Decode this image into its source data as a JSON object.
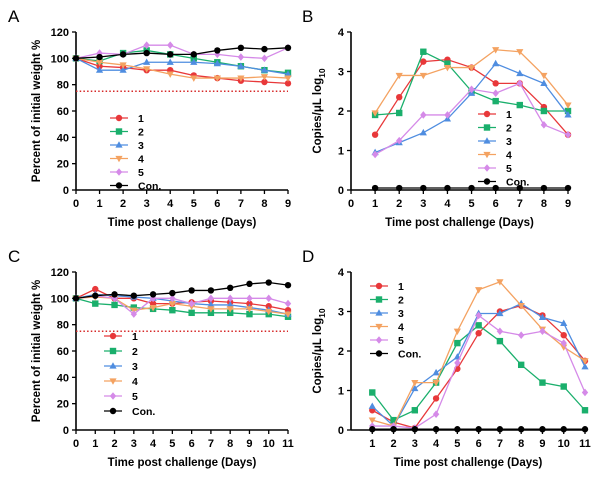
{
  "colors": {
    "1": "#e8383a",
    "2": "#1aaf6c",
    "3": "#4f8de0",
    "4": "#f4a261",
    "5": "#d58ae8",
    "Con.": "#000000",
    "threshold": "#d62828"
  },
  "chart_data": [
    {
      "panel": "A",
      "type": "line",
      "xlabel": "Time post challenge (Days)",
      "ylabel": "Percent of initial weight %",
      "xlim": [
        0,
        9
      ],
      "ylim": [
        0,
        120
      ],
      "xticks": [
        "0",
        "1",
        "2",
        "3",
        "4",
        "5",
        "6",
        "7",
        "8",
        "9"
      ],
      "yticks": [
        "0",
        "20",
        "40",
        "60",
        "80",
        "100",
        "120"
      ],
      "x": [
        0,
        1,
        2,
        3,
        4,
        5,
        6,
        7,
        8,
        9
      ],
      "threshold_line": 75,
      "legend_placement": "bottom-left",
      "series": [
        {
          "name": "1",
          "marker": "circle",
          "values": [
            100,
            94,
            93,
            91,
            91,
            87,
            85,
            83,
            82,
            81
          ]
        },
        {
          "name": "2",
          "marker": "square",
          "values": [
            100,
            98,
            104,
            106,
            103,
            100,
            97,
            94,
            91,
            89
          ]
        },
        {
          "name": "3",
          "marker": "triangle-up",
          "values": [
            100,
            91,
            91,
            97,
            97,
            97,
            96,
            94,
            91,
            88
          ]
        },
        {
          "name": "4",
          "marker": "triangle-down",
          "values": [
            100,
            97,
            95,
            92,
            88,
            85,
            85,
            85,
            86,
            85
          ]
        },
        {
          "name": "5",
          "marker": "diamond",
          "values": [
            100,
            104,
            103,
            110,
            110,
            103,
            103,
            101,
            100,
            108
          ]
        },
        {
          "name": "Con.",
          "marker": "circle",
          "values": [
            100,
            101,
            103,
            104,
            103,
            103,
            106,
            108,
            107,
            108
          ]
        }
      ]
    },
    {
      "panel": "B",
      "type": "line",
      "xlabel": "Time post challenge  (Days)",
      "ylabel": "Copies/μL log",
      "ylabel_sub": "10",
      "xlim": [
        0,
        9
      ],
      "ylim": [
        0,
        4
      ],
      "xticks": [
        "0",
        "1",
        "2",
        "3",
        "4",
        "5",
        "6",
        "7",
        "8",
        "9"
      ],
      "yticks": [
        "0",
        "1",
        "2",
        "3",
        "4"
      ],
      "x": [
        1,
        2,
        3,
        4,
        5,
        6,
        7,
        8,
        9
      ],
      "legend_placement": "bottom-right",
      "series": [
        {
          "name": "1",
          "marker": "circle",
          "values": [
            1.4,
            2.35,
            3.25,
            3.3,
            3.1,
            2.7,
            2.7,
            2.1,
            1.4
          ]
        },
        {
          "name": "2",
          "marker": "square",
          "values": [
            1.9,
            1.95,
            3.5,
            3.2,
            2.5,
            2.25,
            2.15,
            2.0,
            2.0
          ]
        },
        {
          "name": "3",
          "marker": "triangle-up",
          "values": [
            0.95,
            1.2,
            1.45,
            1.8,
            2.45,
            3.2,
            2.95,
            2.7,
            1.9
          ]
        },
        {
          "name": "4",
          "marker": "triangle-down",
          "values": [
            1.95,
            2.9,
            2.9,
            3.1,
            3.1,
            3.55,
            3.5,
            2.9,
            2.15
          ]
        },
        {
          "name": "5",
          "marker": "diamond",
          "values": [
            0.9,
            1.25,
            1.9,
            1.9,
            2.55,
            2.45,
            2.7,
            1.65,
            1.4
          ]
        },
        {
          "name": "Con.",
          "marker": "circle",
          "values": [
            0.05,
            0.05,
            0.05,
            0.05,
            0.05,
            0.05,
            0.05,
            0.05,
            0.05
          ]
        }
      ]
    },
    {
      "panel": "C",
      "type": "line",
      "xlabel": "Time post challenge (Days)",
      "ylabel": "Percent of initial weight %",
      "xlim": [
        0,
        11
      ],
      "ylim": [
        0,
        120
      ],
      "xticks": [
        "0",
        "1",
        "2",
        "3",
        "4",
        "5",
        "6",
        "7",
        "8",
        "9",
        "10",
        "11"
      ],
      "yticks": [
        "0",
        "20",
        "40",
        "60",
        "80",
        "100",
        "120"
      ],
      "x": [
        0,
        1,
        2,
        3,
        4,
        5,
        6,
        7,
        8,
        9,
        10,
        11
      ],
      "threshold_line": 75,
      "legend_placement": "bottom-left",
      "series": [
        {
          "name": "1",
          "marker": "circle",
          "values": [
            100,
            107,
            100,
            100,
            96,
            96,
            97,
            98,
            97,
            96,
            94,
            91
          ]
        },
        {
          "name": "2",
          "marker": "square",
          "values": [
            100,
            96,
            95,
            93,
            92,
            91,
            89,
            89,
            89,
            88,
            88,
            86
          ]
        },
        {
          "name": "3",
          "marker": "triangle-up",
          "values": [
            100,
            103,
            102,
            101,
            100,
            98,
            96,
            95,
            95,
            93,
            91,
            88
          ]
        },
        {
          "name": "4",
          "marker": "triangle-down",
          "values": [
            100,
            101,
            100,
            91,
            93,
            96,
            94,
            92,
            92,
            92,
            90,
            88
          ]
        },
        {
          "name": "5",
          "marker": "diamond",
          "values": [
            100,
            102,
            100,
            88,
            100,
            100,
            96,
            100,
            100,
            100,
            100,
            96
          ]
        },
        {
          "name": "Con.",
          "marker": "circle",
          "values": [
            100,
            102,
            103,
            102,
            103,
            104,
            106,
            106,
            108,
            111,
            112,
            110
          ]
        }
      ]
    },
    {
      "panel": "D",
      "type": "line",
      "xlabel": "Time post challenge  (Days)",
      "ylabel": "Copies/μL log",
      "ylabel_sub": "10",
      "xlim": [
        0,
        11
      ],
      "ylim": [
        0,
        4
      ],
      "xticks": [
        "1",
        "2",
        "3",
        "4",
        "5",
        "6",
        "7",
        "8",
        "9",
        "10",
        "11"
      ],
      "yticks": [
        "0",
        "1",
        "2",
        "3",
        "4"
      ],
      "x": [
        1,
        2,
        3,
        4,
        5,
        6,
        7,
        8,
        9,
        10,
        11
      ],
      "legend_placement": "top-left",
      "series": [
        {
          "name": "1",
          "marker": "circle",
          "values": [
            0.5,
            0.2,
            0.05,
            0.8,
            1.55,
            2.45,
            3.0,
            3.15,
            2.9,
            2.4,
            1.75
          ]
        },
        {
          "name": "2",
          "marker": "square",
          "values": [
            0.95,
            0.25,
            0.5,
            1.2,
            2.2,
            2.65,
            2.25,
            1.65,
            1.2,
            1.1,
            0.5
          ]
        },
        {
          "name": "3",
          "marker": "triangle-up",
          "values": [
            0.6,
            0.1,
            1.05,
            1.45,
            1.85,
            2.95,
            2.95,
            3.2,
            2.85,
            2.7,
            1.6
          ]
        },
        {
          "name": "4",
          "marker": "triangle-down",
          "values": [
            0.25,
            0.1,
            1.2,
            1.2,
            2.5,
            3.55,
            3.75,
            3.15,
            2.55,
            2.1,
            1.75
          ]
        },
        {
          "name": "5",
          "marker": "diamond",
          "values": [
            0.1,
            0.1,
            0.05,
            0.4,
            1.7,
            2.9,
            2.5,
            2.4,
            2.5,
            2.2,
            0.95
          ]
        },
        {
          "name": "Con.",
          "marker": "circle",
          "values": [
            0.02,
            0.02,
            0.02,
            0.02,
            0.02,
            0.02,
            0.02,
            0.02,
            0.02,
            0.02,
            0.02
          ]
        }
      ]
    }
  ]
}
